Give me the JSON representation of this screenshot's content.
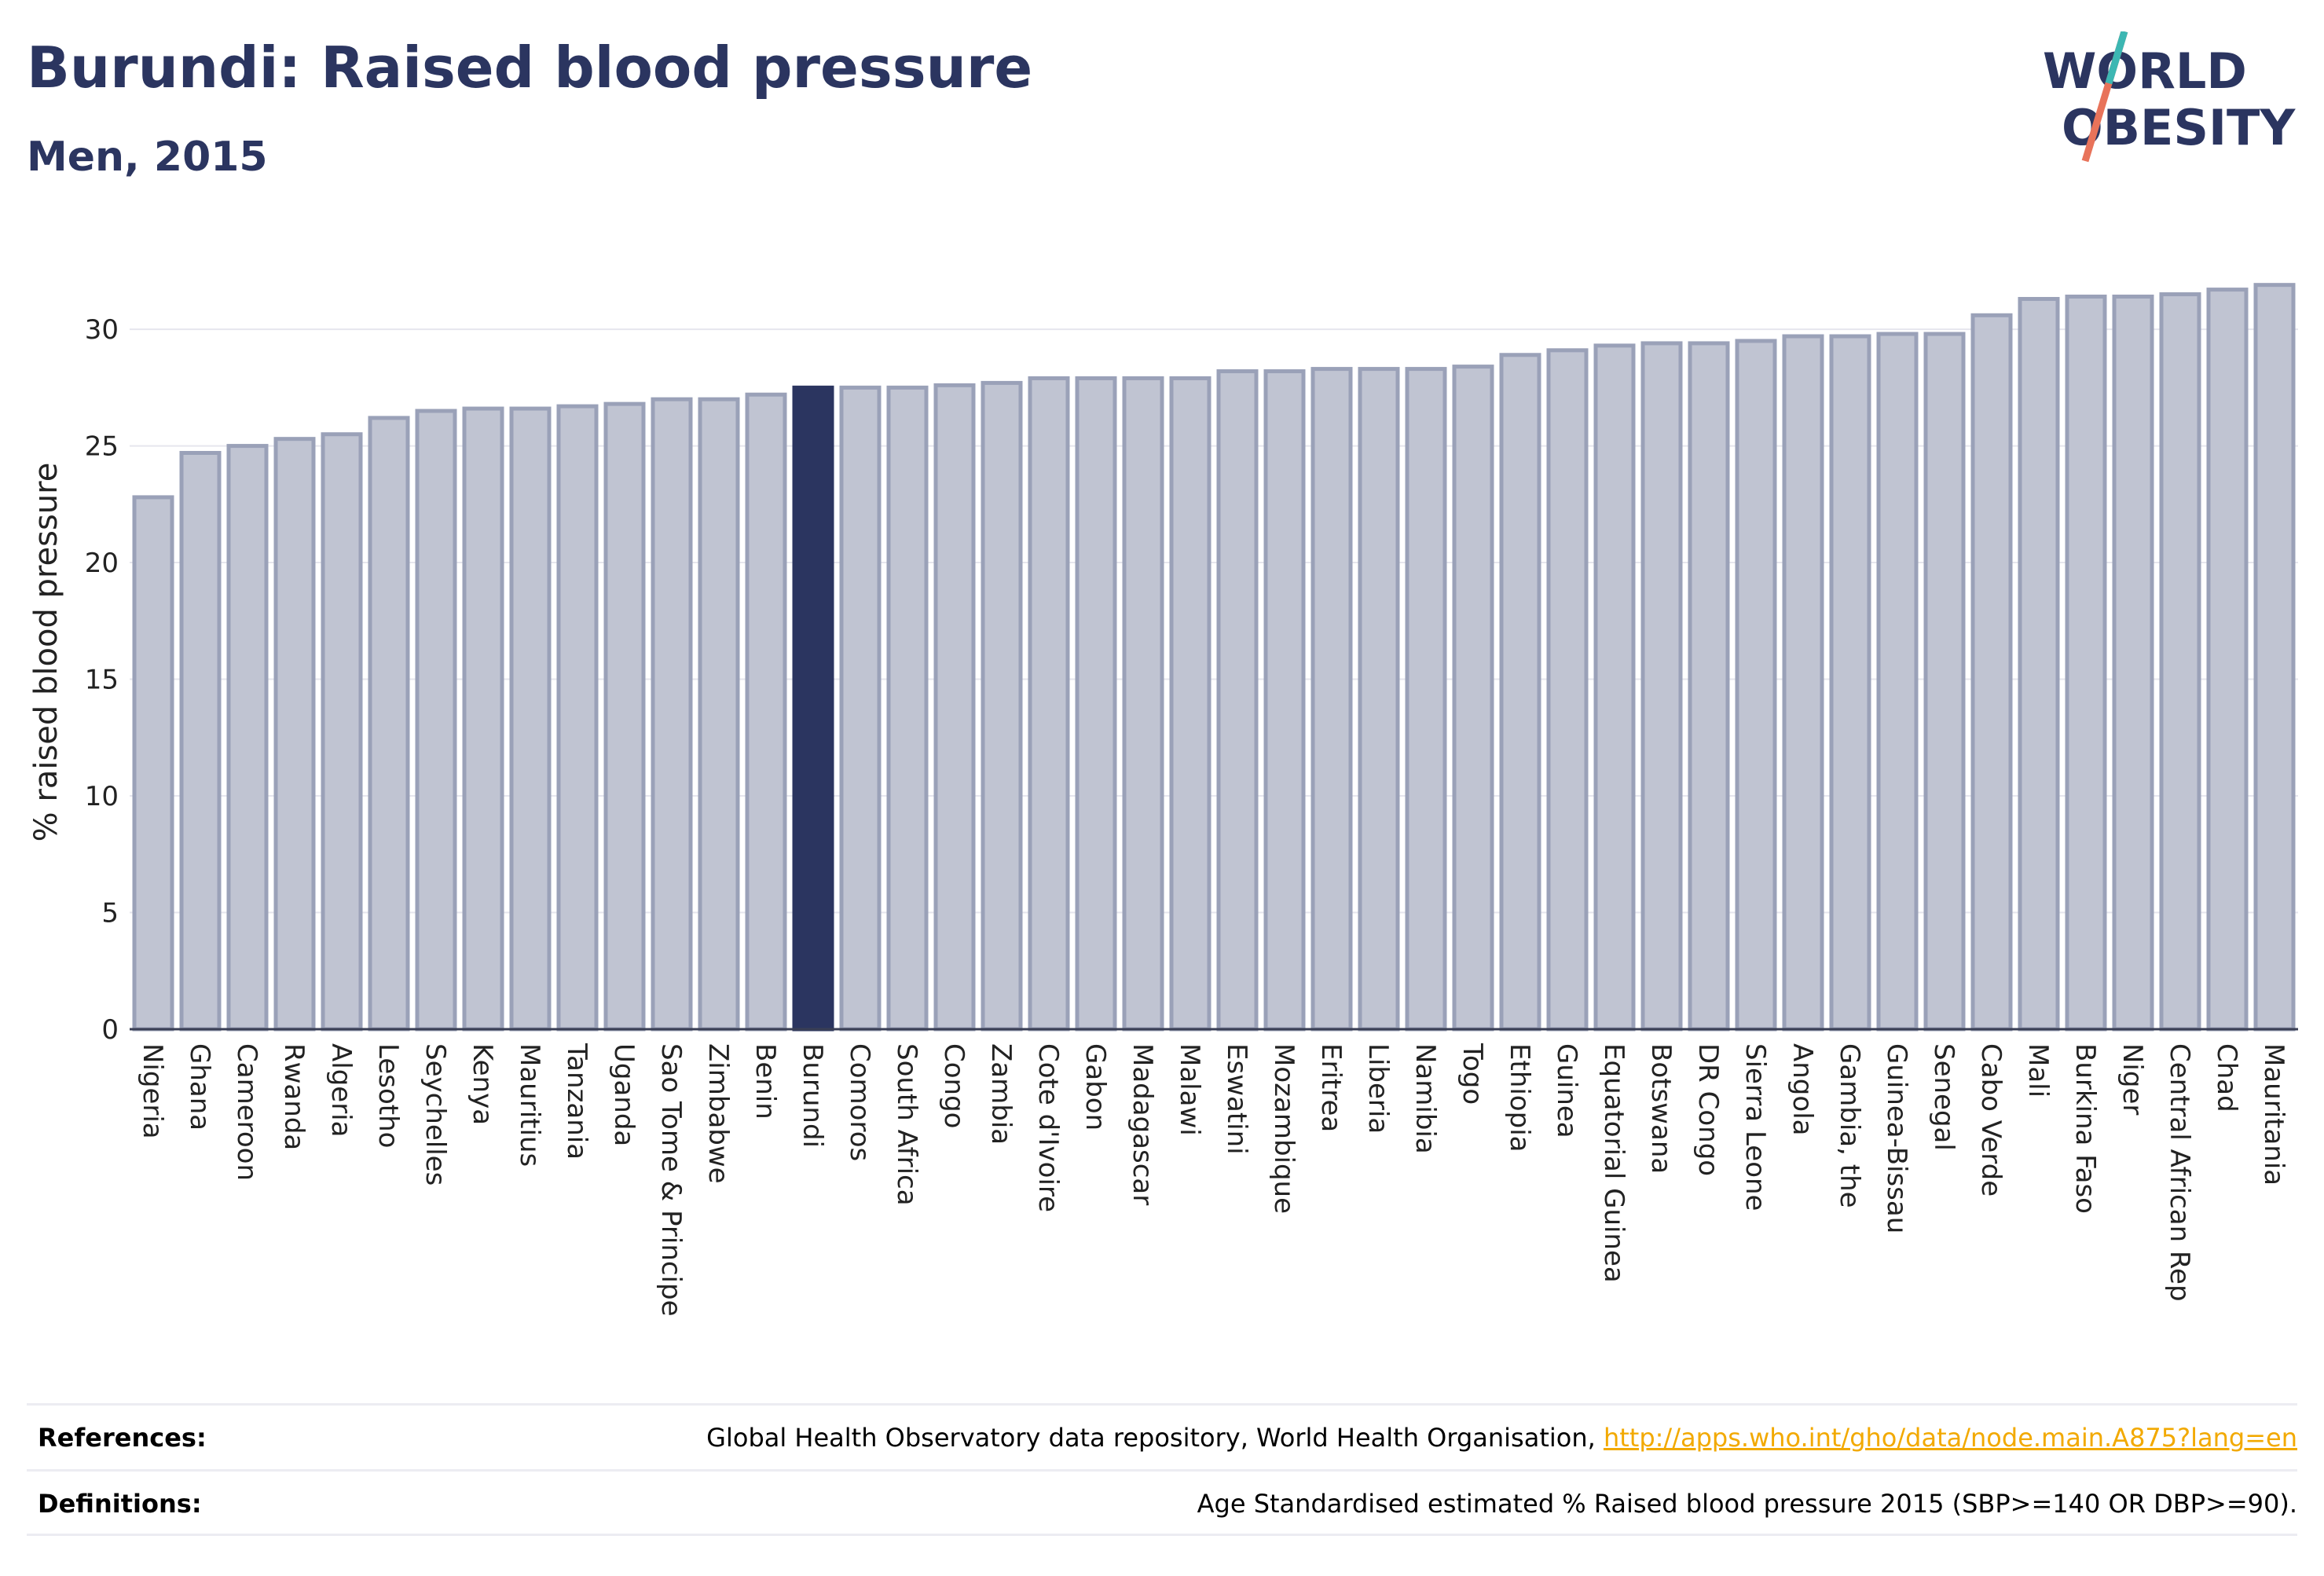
{
  "header": {
    "title": "Burundi: Raised blood pressure",
    "subtitle": "Men, 2015"
  },
  "logo": {
    "line1": "WORLD",
    "line2": "OBESITY"
  },
  "chart_data": {
    "type": "bar",
    "ylabel": "% raised blood pressure",
    "xlabel": "",
    "ylim": [
      0,
      33
    ],
    "yticks": [
      0,
      5,
      10,
      15,
      20,
      25,
      30
    ],
    "grid": true,
    "highlight": "Burundi",
    "colors": {
      "bar": "#c0c4d2",
      "bar_edge": "#9aa1b8",
      "highlight": "#2b3560"
    },
    "categories": [
      "Nigeria",
      "Ghana",
      "Cameroon",
      "Rwanda",
      "Algeria",
      "Lesotho",
      "Seychelles",
      "Kenya",
      "Mauritius",
      "Tanzania",
      "Uganda",
      "Sao Tome & Principe",
      "Zimbabwe",
      "Benin",
      "Burundi",
      "Comoros",
      "South Africa",
      "Congo",
      "Zambia",
      "Cote d'Ivoire",
      "Gabon",
      "Madagascar",
      "Malawi",
      "Eswatini",
      "Mozambique",
      "Eritrea",
      "Liberia",
      "Namibia",
      "Togo",
      "Ethiopia",
      "Guinea",
      "Equatorial Guinea",
      "Botswana",
      "DR Congo",
      "Sierra Leone",
      "Angola",
      "Gambia, the",
      "Guinea-Bissau",
      "Senegal",
      "Cabo Verde",
      "Mali",
      "Burkina Faso",
      "Niger",
      "Central African Rep",
      "Chad",
      "Mauritania"
    ],
    "values": [
      22.8,
      24.7,
      25.0,
      25.3,
      25.5,
      26.2,
      26.5,
      26.6,
      26.6,
      26.7,
      26.8,
      27.0,
      27.0,
      27.2,
      27.5,
      27.5,
      27.5,
      27.6,
      27.7,
      27.9,
      27.9,
      27.9,
      27.9,
      28.2,
      28.2,
      28.3,
      28.3,
      28.3,
      28.4,
      28.9,
      29.1,
      29.3,
      29.4,
      29.4,
      29.5,
      29.7,
      29.7,
      29.8,
      29.8,
      30.6,
      31.3,
      31.4,
      31.4,
      31.5,
      31.7,
      31.9
    ]
  },
  "footer": {
    "references_label": "References:",
    "references_text": "Global Health Observatory data repository, World Health Organisation, ",
    "references_link": "http://apps.who.int/gho/data/node.main.A875?lang=en",
    "definitions_label": "Definitions:",
    "definitions_text": "Age Standardised estimated % Raised blood pressure 2015 (SBP>=140 OR DBP>=90)."
  }
}
